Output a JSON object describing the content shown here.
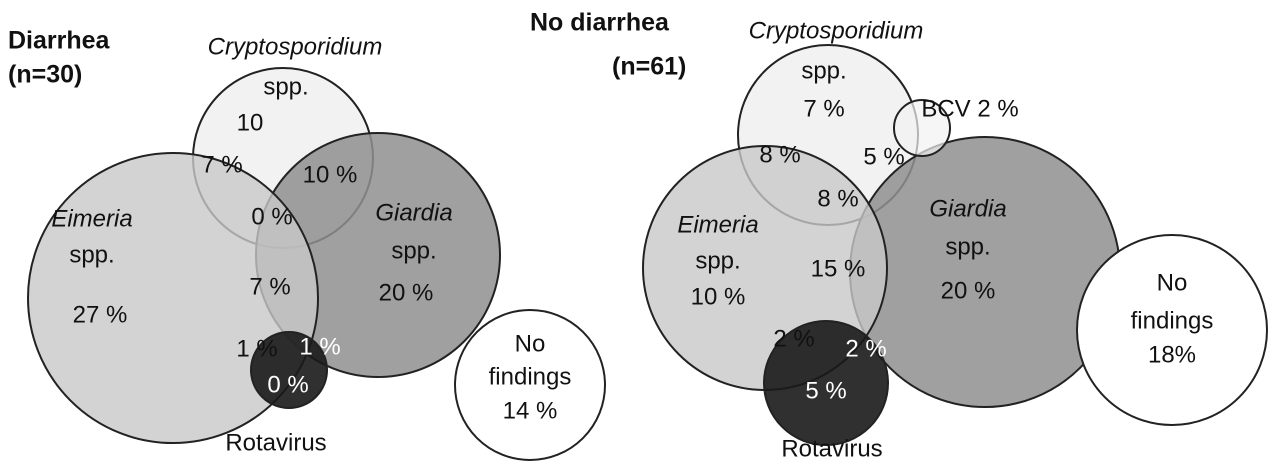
{
  "panels": [
    {
      "title": [
        "Diarrhea",
        "(n=30)"
      ],
      "sets": {
        "cryptosporidium": [
          "Cryptosporidium",
          "spp."
        ],
        "eimeria": [
          "Eimeria",
          "spp."
        ],
        "giardia": [
          "Giardia",
          "spp."
        ],
        "rotavirus": "Rotavirus",
        "no_findings": [
          "No",
          "findings",
          "14 %"
        ]
      },
      "regions": {
        "cryptosporidium": "10",
        "cryptosporidium_eimeria": "7 %",
        "cryptosporidium_giardia": "10 %",
        "cryptosporidium_eimeria_giardia": "0 %",
        "eimeria": "27 %",
        "eimeria_giardia": "7 %",
        "giardia": "20 %",
        "eimeria_rotavirus": "1 %",
        "giardia_rotavirus": "1 %",
        "rotavirus": "0 %"
      }
    },
    {
      "title": [
        "No diarrhea",
        "(n=61)"
      ],
      "sets": {
        "cryptosporidium": [
          "Cryptosporidium",
          "spp."
        ],
        "bcv": "BCV 2 %",
        "eimeria": [
          "Eimeria",
          "spp."
        ],
        "giardia": [
          "Giardia",
          "spp."
        ],
        "rotavirus": "Rotavirus",
        "no_findings": [
          "No",
          "findings",
          "18%"
        ]
      },
      "regions": {
        "cryptosporidium": "7 %",
        "cryptosporidium_eimeria": "8 %",
        "cryptosporidium_giardia": "5 %",
        "cryptosporidium_eimeria_giardia": "8 %",
        "eimeria": "10 %",
        "eimeria_giardia": "15 %",
        "giardia": "20 %",
        "eimeria_rotavirus": "2 %",
        "giardia_rotavirus": "2 %",
        "rotavirus": "5 %"
      }
    }
  ]
}
